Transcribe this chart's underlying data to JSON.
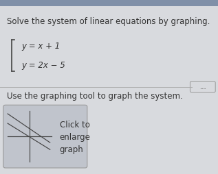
{
  "bg_color": "#c8ccd4",
  "top_bar_color": "#8090a8",
  "content_bg": "#d8dade",
  "title_text": "Solve the system of linear equations by graphing.",
  "title_fontsize": 8.5,
  "eq1": "y = x + 1",
  "eq2": "y = 2x − 5",
  "eq_fontsize": 8.5,
  "subtitle_text": "Use the graphing tool to graph the system.",
  "subtitle_fontsize": 8.5,
  "box_bg": "#c0c4cc",
  "box_border": "#999999",
  "click_text": "Click to\nenlarge\ngraph",
  "click_fontsize": 8.5,
  "divider_color": "#aaaaaa",
  "text_color": "#333333",
  "graph_line_color": "#444444",
  "brace_color": "#444444",
  "dots_color": "#888888",
  "dots_text": "...",
  "top_bar_height": 0.04
}
